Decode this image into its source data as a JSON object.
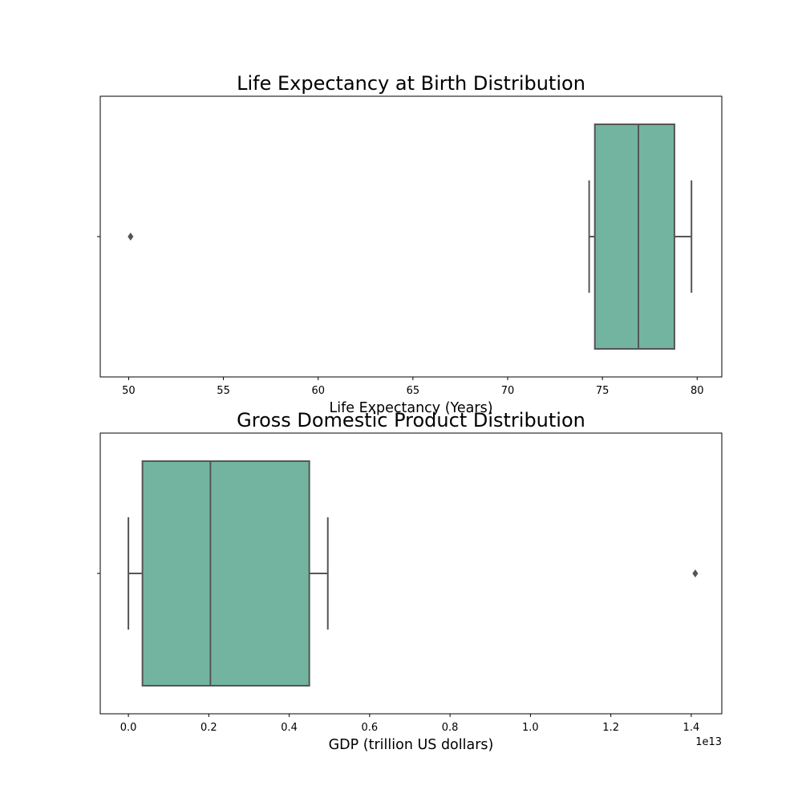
{
  "chart_data": [
    {
      "type": "box",
      "orientation": "horizontal",
      "title": "Life Expectancy at Birth Distribution",
      "xlabel": "Life Expectancy (Years)",
      "ylabel": "",
      "xlim": [
        48.5,
        81.3
      ],
      "xticks": [
        50,
        55,
        60,
        65,
        70,
        75,
        80
      ],
      "xtick_labels": [
        "50",
        "55",
        "60",
        "65",
        "70",
        "75",
        "80"
      ],
      "offset_label": "",
      "color": "#73b4a0",
      "line_color": "#555555",
      "grid": false,
      "box": {
        "whisker_low": 74.3,
        "q1": 74.6,
        "median": 76.9,
        "q3": 78.8,
        "whisker_high": 79.7
      },
      "outliers": [
        50.1
      ]
    },
    {
      "type": "box",
      "orientation": "horizontal",
      "title": "Gross Domestic Product Distribution",
      "xlabel": "GDP (trillion US dollars)",
      "ylabel": "",
      "xlim": [
        -0.07,
        1.476
      ],
      "xticks": [
        0.0,
        0.2,
        0.4,
        0.6,
        0.8,
        1.0,
        1.2,
        1.4
      ],
      "xtick_labels": [
        "0.0",
        "0.2",
        "0.4",
        "0.6",
        "0.8",
        "1.0",
        "1.2",
        "1.4"
      ],
      "offset_label": "1e13",
      "color": "#73b4a0",
      "line_color": "#555555",
      "grid": false,
      "box": {
        "whisker_low": 0.0,
        "q1": 0.035,
        "median": 0.204,
        "q3": 0.45,
        "whisker_high": 0.496
      },
      "outliers": [
        1.41
      ]
    }
  ]
}
